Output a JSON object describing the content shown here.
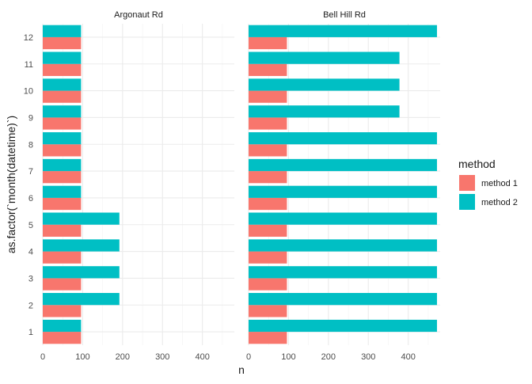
{
  "chart_data": {
    "type": "bar",
    "orientation": "horizontal",
    "xlabel": "n",
    "ylabel": "as.factor(`month(datetime)`)",
    "xlim": [
      0,
      480
    ],
    "x_ticks": [
      "0",
      "100",
      "200",
      "300",
      "400"
    ],
    "categories": [
      "1",
      "2",
      "3",
      "4",
      "5",
      "6",
      "7",
      "8",
      "9",
      "10",
      "11",
      "12"
    ],
    "grid": true,
    "legend": {
      "title": "method",
      "position": "right",
      "entries": [
        {
          "name": "method 1",
          "color": "#F8766D"
        },
        {
          "name": "method 2",
          "color": "#00BFC4"
        }
      ]
    },
    "facets": [
      {
        "label": "Argonaut Rd",
        "series": [
          {
            "name": "method 1",
            "color": "#F8766D",
            "values": [
              96,
              96,
              96,
              96,
              96,
              96,
              96,
              96,
              96,
              96,
              96,
              96
            ]
          },
          {
            "name": "method 2",
            "color": "#00BFC4",
            "values": [
              96,
              192,
              192,
              192,
              192,
              96,
              96,
              96,
              96,
              96,
              96,
              96
            ]
          }
        ]
      },
      {
        "label": "Bell Hill Rd",
        "series": [
          {
            "name": "method 1",
            "color": "#F8766D",
            "values": [
              96,
              96,
              96,
              96,
              96,
              96,
              96,
              96,
              96,
              96,
              96,
              96
            ]
          },
          {
            "name": "method 2",
            "color": "#00BFC4",
            "values": [
              472,
              472,
              472,
              472,
              472,
              472,
              472,
              472,
              378,
              378,
              378,
              472
            ]
          }
        ]
      }
    ]
  }
}
